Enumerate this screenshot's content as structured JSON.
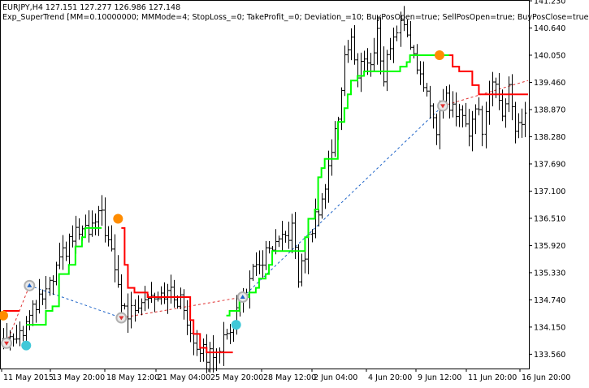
{
  "header": {
    "symbol_line": "EURJPY,H4  127.151 127.277 126.986 127.148",
    "expert_line": "Exp_SuperTrend [MM=0.10000000; MMMode=4; StopLoss_=0; TakeProfit_=0; Deviation_=10; BuyPosOpen=true; SellPosOpen=true; BuyPosClose=true"
  },
  "colors": {
    "background": "#ffffff",
    "bars": "#000000",
    "supertrend_up": "#00ff00",
    "supertrend_down": "#ff0000",
    "buy_marker": "#40c8d8",
    "sell_marker": "#ff8c00",
    "buy_trade_line": "#1e64c8",
    "sell_trade_line": "#e03030",
    "deal_marker_ring": "#b0b0b0"
  },
  "chart_data": {
    "type": "candlestick",
    "symbol": "EURJPY",
    "timeframe": "H4",
    "ylim": [
      133.25,
      141.23
    ],
    "y_ticks": [
      "141.230",
      "140.640",
      "140.050",
      "139.460",
      "138.870",
      "138.280",
      "137.690",
      "137.100",
      "136.510",
      "135.920",
      "135.330",
      "134.740",
      "134.150",
      "133.560"
    ],
    "x_ticks": [
      "11 May 2015",
      "13 May 20:00",
      "18 May 12:00",
      "21 May 04:00",
      "25 May 20:00",
      "28 May 12:00",
      "2 Jun 04:00",
      "4 Jun 20:00",
      "9 Jun 12:00",
      "11 Jun 20:00",
      "16 Jun 20:00"
    ],
    "n_bars": 160,
    "price_anchors": [
      [
        0,
        133.9
      ],
      [
        6,
        134.1
      ],
      [
        10,
        134.6
      ],
      [
        14,
        135.0
      ],
      [
        18,
        135.7
      ],
      [
        22,
        136.2
      ],
      [
        26,
        136.2
      ],
      [
        30,
        136.6
      ],
      [
        32,
        136.0
      ],
      [
        36,
        134.7
      ],
      [
        38,
        134.4
      ],
      [
        42,
        134.8
      ],
      [
        46,
        134.9
      ],
      [
        50,
        134.9
      ],
      [
        54,
        134.7
      ],
      [
        58,
        133.9
      ],
      [
        62,
        133.5
      ],
      [
        65,
        133.7
      ],
      [
        68,
        133.9
      ],
      [
        72,
        134.7
      ],
      [
        76,
        135.3
      ],
      [
        80,
        135.7
      ],
      [
        84,
        135.9
      ],
      [
        88,
        136.3
      ],
      [
        90,
        135.2
      ],
      [
        94,
        136.3
      ],
      [
        98,
        137.2
      ],
      [
        100,
        138.0
      ],
      [
        102,
        138.7
      ],
      [
        104,
        140.1
      ],
      [
        106,
        140.4
      ],
      [
        108,
        139.5
      ],
      [
        110,
        140.1
      ],
      [
        112,
        139.8
      ],
      [
        114,
        140.5
      ],
      [
        116,
        139.6
      ],
      [
        118,
        140.3
      ],
      [
        120,
        140.6
      ],
      [
        122,
        140.8
      ],
      [
        124,
        140.3
      ],
      [
        126,
        139.9
      ],
      [
        128,
        139.2
      ],
      [
        130,
        139.0
      ],
      [
        132,
        138.5
      ],
      [
        134,
        139.2
      ],
      [
        136,
        139.0
      ],
      [
        138,
        138.7
      ],
      [
        140,
        138.9
      ],
      [
        142,
        138.3
      ],
      [
        144,
        139.0
      ],
      [
        146,
        138.5
      ],
      [
        148,
        139.3
      ],
      [
        150,
        139.3
      ],
      [
        152,
        138.9
      ],
      [
        154,
        139.4
      ],
      [
        156,
        138.4
      ],
      [
        158,
        138.6
      ],
      [
        159,
        138.8
      ]
    ],
    "bar_range": 0.35,
    "series": [
      {
        "name": "SuperTrend up",
        "color": "#00ff00",
        "segments": [
          [
            [
              7,
              134.2
            ],
            [
              12,
              134.2
            ],
            [
              13,
              134.5
            ],
            [
              15,
              134.6
            ],
            [
              17,
              135.3
            ],
            [
              20,
              135.5
            ],
            [
              22,
              135.9
            ],
            [
              24,
              136.1
            ],
            [
              25,
              136.3
            ],
            [
              30,
              136.3
            ]
          ],
          [
            [
              68,
              134.4
            ],
            [
              69,
              134.5
            ],
            [
              71,
              134.5
            ],
            [
              72,
              134.8
            ],
            [
              74,
              134.8
            ],
            [
              75,
              134.9
            ],
            [
              77,
              135.0
            ],
            [
              78,
              135.2
            ],
            [
              80,
              135.3
            ],
            [
              81,
              135.5
            ],
            [
              82,
              135.8
            ],
            [
              85,
              135.8
            ],
            [
              91,
              135.8
            ],
            [
              92,
              136.1
            ],
            [
              93,
              136.5
            ],
            [
              95,
              136.7
            ],
            [
              96,
              137.4
            ],
            [
              97,
              137.6
            ],
            [
              98,
              137.8
            ],
            [
              101,
              137.8
            ],
            [
              102,
              138.6
            ],
            [
              104,
              138.9
            ],
            [
              105,
              139.2
            ],
            [
              106,
              139.5
            ],
            [
              108,
              139.6
            ],
            [
              110,
              139.7
            ],
            [
              120,
              139.7
            ],
            [
              121,
              139.8
            ],
            [
              123,
              139.9
            ],
            [
              124,
              140.05
            ],
            [
              136,
              140.05
            ]
          ]
        ]
      },
      {
        "name": "SuperTrend down",
        "color": "#ff0000",
        "segments": [
          [
            [
              0,
              134.5
            ],
            [
              5,
              134.5
            ]
          ],
          [
            [
              36,
              136.3
            ],
            [
              37,
              135.5
            ],
            [
              38,
              135.0
            ],
            [
              40,
              134.9
            ],
            [
              42,
              134.9
            ],
            [
              44,
              134.8
            ],
            [
              52,
              134.8
            ],
            [
              56,
              134.8
            ],
            [
              57,
              134.3
            ],
            [
              58,
              134.0
            ],
            [
              60,
              133.7
            ],
            [
              62,
              133.6
            ],
            [
              70,
              133.6
            ]
          ],
          [
            [
              136,
              140.05
            ],
            [
              137,
              139.8
            ],
            [
              139,
              139.7
            ],
            [
              142,
              139.7
            ],
            [
              143,
              139.4
            ],
            [
              145,
              139.2
            ],
            [
              160,
              139.2
            ]
          ]
        ]
      }
    ],
    "markers": [
      {
        "type": "buy_signal",
        "bar": 7,
        "price": 133.75
      },
      {
        "type": "sell_signal",
        "bar": 0,
        "price": 134.4
      },
      {
        "type": "sell_signal",
        "bar": 35,
        "price": 136.5
      },
      {
        "type": "buy_signal",
        "bar": 71,
        "price": 134.2
      },
      {
        "type": "sell_signal",
        "bar": 133,
        "price": 140.05
      },
      {
        "type": "deal_buy",
        "bar": 8,
        "price": 135.05
      },
      {
        "type": "deal_sell",
        "bar": 1,
        "price": 133.8
      },
      {
        "type": "deal_sell",
        "bar": 36,
        "price": 134.35
      },
      {
        "type": "deal_buy",
        "bar": 73,
        "price": 134.8
      },
      {
        "type": "deal_sell",
        "bar": 134,
        "price": 138.95
      }
    ],
    "trade_lines": [
      {
        "side": "buy",
        "from": [
          8,
          135.05
        ],
        "to": [
          36,
          134.35
        ]
      },
      {
        "side": "sell",
        "from": [
          1,
          133.8
        ],
        "to": [
          8,
          135.05
        ]
      },
      {
        "side": "sell",
        "from": [
          36,
          134.35
        ],
        "to": [
          73,
          134.8
        ]
      },
      {
        "side": "buy",
        "from": [
          73,
          134.8
        ],
        "to": [
          134,
          138.95
        ]
      },
      {
        "side": "sell",
        "from": [
          134,
          138.95
        ],
        "to": [
          160,
          139.5
        ]
      }
    ]
  }
}
